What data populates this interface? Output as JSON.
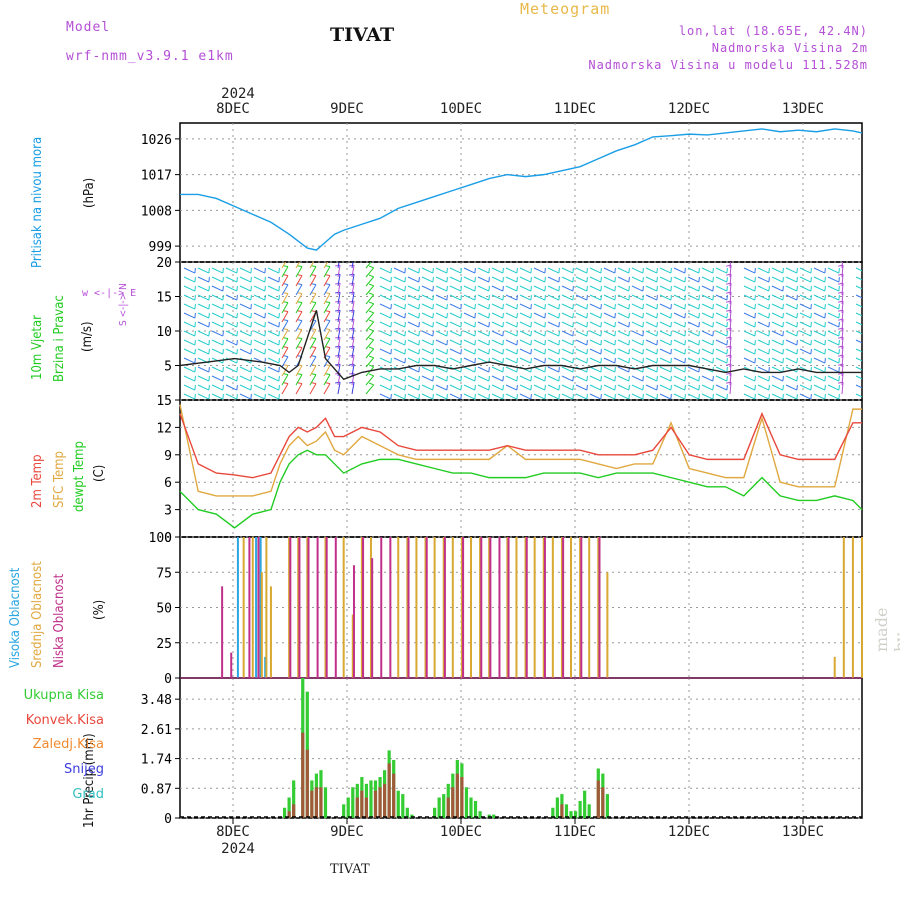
{
  "header": {
    "model_label": "Model",
    "model_name": "wrf-nmm_v3.9.1 e1km",
    "title": "TIVAT",
    "meteogram": "Meteogram",
    "lonlat": "lon,lat (18.65E, 42.4N)",
    "elevation": "Nadmorska Visina 2m",
    "model_elevation": "Nadmorska Visina u modelu 111.528m"
  },
  "footer_title": "TIVAT",
  "watermark": "made by Angel",
  "colors": {
    "pressure": "#1a9ee6",
    "temp2m": "#e8483c",
    "sfc": "#e0a840",
    "dew": "#22cc22",
    "high_cloud": "#2aa6e0",
    "mid_cloud": "#d8a830",
    "low_cloud": "#c0308a",
    "total_precip": "#33cc33",
    "conv_precip": "#a05a3a"
  },
  "time_axis": {
    "top_year": "2024",
    "bottom_year": "2024",
    "days": [
      "8DEC",
      "9DEC",
      "10DEC",
      "11DEC",
      "12DEC",
      "13DEC"
    ]
  },
  "panels": {
    "pressure": {
      "label_line1": "Pritisak na nivou mora",
      "unit": "(hPa)"
    },
    "wind": {
      "label_line1": "10m Vjetar",
      "label_line2": "Brzina i Pravac",
      "unit": "(m/s)",
      "compass": "w <-|-> E",
      "compass2": "S <-|-> N"
    },
    "temp": {
      "label_t2": "2m Temp",
      "label_sfc": "SFC Temp",
      "label_dew": "dewpt Temp",
      "unit": "(C)"
    },
    "cloud": {
      "label_high": "Visoka Oblacnost",
      "label_mid": "Srednja Oblacnost",
      "label_low": "Niska Oblacnost",
      "unit": "(%)"
    },
    "precip": {
      "unit_label": "1hr Precip (mm)",
      "legend": [
        "Ukupna Kisa",
        "Konvek.Kisa",
        "Zaledj.Kisa",
        "Snijeg",
        "Grad"
      ],
      "legend_colors": [
        "#33cc33",
        "#e8483c",
        "#f08a30",
        "#3c3cdc",
        "#33c0c0"
      ]
    }
  },
  "chart_data": [
    {
      "type": "line",
      "title": "",
      "ylabel": "(hPa)",
      "ylim": [
        995,
        1030
      ],
      "yticks": [
        "999",
        "1008",
        "1017",
        "1026"
      ],
      "x_hours": [
        0,
        4,
        8,
        12,
        16,
        20,
        24,
        28,
        30,
        32,
        34,
        36,
        40,
        44,
        48,
        52,
        56,
        60,
        64,
        68,
        72,
        76,
        80,
        84,
        88,
        92,
        96,
        100,
        104,
        108,
        112,
        116,
        120,
        124,
        128,
        132,
        136,
        140,
        144,
        148,
        150
      ],
      "series": [
        {
          "name": "Pritisak na nivou mora",
          "values": [
            1012,
            1012,
            1011,
            1009,
            1007,
            1005,
            1002,
            998.5,
            998,
            1000,
            1002,
            1003,
            1004.5,
            1006,
            1008.5,
            1010,
            1011.5,
            1013,
            1014.5,
            1016,
            1017,
            1016.5,
            1017,
            1018,
            1019,
            1021,
            1023,
            1024.5,
            1026.5,
            1026.8,
            1027.2,
            1027,
            1027.5,
            1028,
            1028.5,
            1027.8,
            1028.2,
            1027.8,
            1028.5,
            1028,
            1027.5
          ]
        }
      ]
    },
    {
      "type": "line",
      "title": "",
      "ylabel": "(m/s)",
      "ylim": [
        0,
        20
      ],
      "yticks": [
        "5",
        "10",
        "15",
        "20"
      ],
      "x_hours": [
        0,
        6,
        12,
        18,
        22,
        24,
        26,
        28,
        30,
        32,
        36,
        40,
        44,
        48,
        52,
        56,
        60,
        64,
        68,
        72,
        76,
        80,
        84,
        88,
        92,
        96,
        100,
        104,
        108,
        112,
        116,
        120,
        124,
        128,
        132,
        136,
        140,
        144,
        150
      ],
      "series": [
        {
          "name": "",
          "values": [
            5,
            5.5,
            6,
            5.5,
            5,
            4,
            5,
            9,
            13,
            6,
            3,
            4,
            4.5,
            4.5,
            5,
            5,
            4.5,
            5,
            5.5,
            5,
            4.5,
            5,
            5,
            4.5,
            5,
            5,
            4.5,
            5,
            5,
            5,
            4.5,
            4,
            4.5,
            4,
            4,
            4.5,
            4,
            4,
            4
          ]
        }
      ]
    },
    {
      "type": "line",
      "title": "",
      "ylabel": "(C)",
      "ylim": [
        0,
        15
      ],
      "yticks": [
        "0",
        "3",
        "6",
        "9",
        "12",
        "15"
      ],
      "x_hours": [
        0,
        4,
        8,
        12,
        16,
        20,
        22,
        24,
        26,
        28,
        30,
        32,
        34,
        36,
        40,
        44,
        48,
        52,
        56,
        60,
        64,
        68,
        72,
        76,
        80,
        84,
        88,
        92,
        96,
        100,
        104,
        108,
        112,
        116,
        120,
        124,
        128,
        132,
        136,
        140,
        144,
        148,
        150
      ],
      "series": [
        {
          "name": "2m Temp",
          "values": [
            13.5,
            8,
            7,
            6.8,
            6.5,
            7,
            9,
            11,
            12,
            11.5,
            12,
            13,
            11,
            11,
            12,
            11.5,
            10,
            9.5,
            9.5,
            9.5,
            9.5,
            9.5,
            10,
            9.5,
            9.5,
            9.5,
            9.5,
            9,
            9,
            9,
            9.5,
            12,
            9,
            8.5,
            8.5,
            8.5,
            13.5,
            9,
            8.5,
            8.5,
            8.5,
            12.5,
            12.5
          ]
        },
        {
          "name": "SFC Temp",
          "values": [
            14.5,
            5,
            4.5,
            4.5,
            4.5,
            5,
            8,
            10,
            11,
            10,
            10.5,
            11.5,
            9.5,
            9,
            11,
            10,
            9,
            8.5,
            8.5,
            8.5,
            8.5,
            8.5,
            10,
            8.5,
            8.5,
            8.5,
            8.5,
            8,
            7.5,
            8,
            8,
            12.5,
            7.5,
            7,
            6.5,
            6.5,
            13,
            6,
            5.5,
            5.5,
            5.5,
            14,
            14
          ]
        },
        {
          "name": "dewpt Temp",
          "values": [
            5,
            3,
            2.5,
            1,
            2.5,
            3,
            6,
            8,
            9,
            9.5,
            9,
            9,
            8,
            7,
            8,
            8.5,
            8.5,
            8,
            7.5,
            7,
            7,
            6.5,
            6.5,
            6.5,
            7,
            7,
            7,
            6.5,
            7,
            7,
            7,
            6.5,
            6,
            5.5,
            5.5,
            4.5,
            6.5,
            4.5,
            4,
            4,
            4.5,
            4,
            3
          ]
        }
      ]
    },
    {
      "type": "bar",
      "title": "",
      "ylabel": "(%)",
      "ylim": [
        0,
        100
      ],
      "yticks": [
        "0",
        "25",
        "50",
        "75",
        "100"
      ],
      "series": [
        {
          "name": "Visoka Oblacnost",
          "x_hours": [
            13,
            17,
            18,
            19
          ],
          "values": [
            100,
            100,
            100,
            15
          ]
        },
        {
          "name": "Srednja Oblacnost",
          "x_hours": [
            14,
            16,
            18,
            19,
            20,
            24,
            26,
            28,
            32,
            36,
            38,
            40,
            42,
            48,
            50,
            52,
            54,
            56,
            58,
            60,
            62,
            64,
            66,
            68,
            72,
            74,
            76,
            78,
            80,
            82,
            84,
            86,
            88,
            90,
            92,
            94,
            144,
            146,
            148,
            150
          ],
          "values": [
            100,
            100,
            75,
            100,
            65,
            100,
            100,
            100,
            100,
            100,
            45,
            100,
            100,
            100,
            100,
            100,
            100,
            100,
            100,
            100,
            100,
            100,
            100,
            100,
            100,
            100,
            100,
            100,
            100,
            100,
            100,
            100,
            100,
            100,
            100,
            75,
            15,
            100,
            100,
            100
          ]
        },
        {
          "name": "Niska Oblacnost",
          "x_hours": [
            9,
            11,
            15,
            17,
            24,
            26,
            28,
            30,
            32,
            34,
            38,
            40,
            42,
            44,
            46,
            50,
            54,
            58,
            62,
            66,
            68,
            70,
            72,
            76,
            80,
            84,
            88,
            92
          ],
          "values": [
            65,
            18,
            100,
            100,
            100,
            100,
            100,
            100,
            100,
            100,
            80,
            100,
            85,
            100,
            100,
            100,
            100,
            100,
            100,
            100,
            100,
            100,
            100,
            100,
            100,
            100,
            100,
            100
          ]
        }
      ]
    },
    {
      "type": "bar",
      "title": "",
      "ylabel": "1hr Precip (mm)",
      "ylim": [
        0,
        4.1
      ],
      "yticks": [
        "0",
        "0.87",
        "1.74",
        "2.61",
        "3.48"
      ],
      "series": [
        {
          "name": "Ukupna Kisa",
          "x_hours": [
            23,
            24,
            25,
            27,
            28,
            29,
            30,
            31,
            32,
            36,
            37,
            38,
            39,
            40,
            41,
            42,
            43,
            44,
            45,
            46,
            47,
            48,
            49,
            50,
            51,
            56,
            57,
            58,
            59,
            60,
            61,
            62,
            63,
            64,
            65,
            66,
            68,
            69,
            82,
            83,
            84,
            85,
            86,
            87,
            88,
            89,
            90,
            92,
            93,
            94
          ],
          "values": [
            0.3,
            0.6,
            1.1,
            4.1,
            3.7,
            1.1,
            1.3,
            1.4,
            0.9,
            0.4,
            0.6,
            0.9,
            1.0,
            1.2,
            1.0,
            1.1,
            1.1,
            1.2,
            1.4,
            1.98,
            1.7,
            0.8,
            0.7,
            0.3,
            0.1,
            0.3,
            0.6,
            0.7,
            1.0,
            1.3,
            1.7,
            1.6,
            0.9,
            0.6,
            0.5,
            0.2,
            0.1,
            0.1,
            0.3,
            0.6,
            0.7,
            0.4,
            0.2,
            0.2,
            0.5,
            0.8,
            0.4,
            1.45,
            1.3,
            0.7
          ]
        },
        {
          "name": "Konvek.Kisa",
          "x_hours": [
            24,
            25,
            27,
            28,
            29,
            30,
            31,
            39,
            40,
            41,
            43,
            44,
            45,
            46,
            47,
            59,
            60,
            61,
            62,
            84,
            92,
            93
          ],
          "values": [
            0.2,
            0.4,
            2.5,
            2.0,
            0.8,
            0.9,
            0.9,
            0.6,
            0.8,
            0.6,
            0.8,
            0.9,
            1.0,
            1.6,
            1.3,
            0.6,
            0.9,
            1.3,
            1.2,
            0.4,
            1.1,
            0.9
          ]
        }
      ]
    }
  ]
}
